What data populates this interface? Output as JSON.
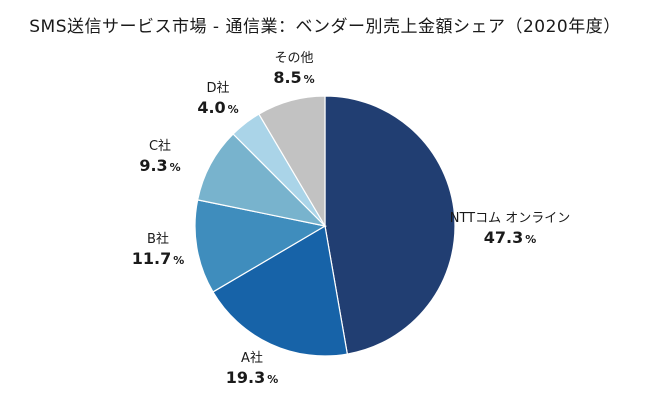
{
  "chart_data": {
    "type": "pie",
    "title": "SMS送信サービス市場 - 通信業：ベンダー別売上金額シェア（2020年度）",
    "unit": "%",
    "start_angle_deg": 0,
    "direction": "clockwise",
    "slices": [
      {
        "name": "NTTコム オンライン",
        "value": 47.3,
        "color": "#213e72"
      },
      {
        "name": "A社",
        "value": 19.3,
        "color": "#1763a8"
      },
      {
        "name": "B社",
        "value": 11.7,
        "color": "#3f8dbd"
      },
      {
        "name": "C社",
        "value": 9.3,
        "color": "#78b3cd"
      },
      {
        "name": "D社",
        "value": 4.0,
        "color": "#aad4e8"
      },
      {
        "name": "その他",
        "value": 8.5,
        "color": "#c2c2c2"
      }
    ]
  }
}
